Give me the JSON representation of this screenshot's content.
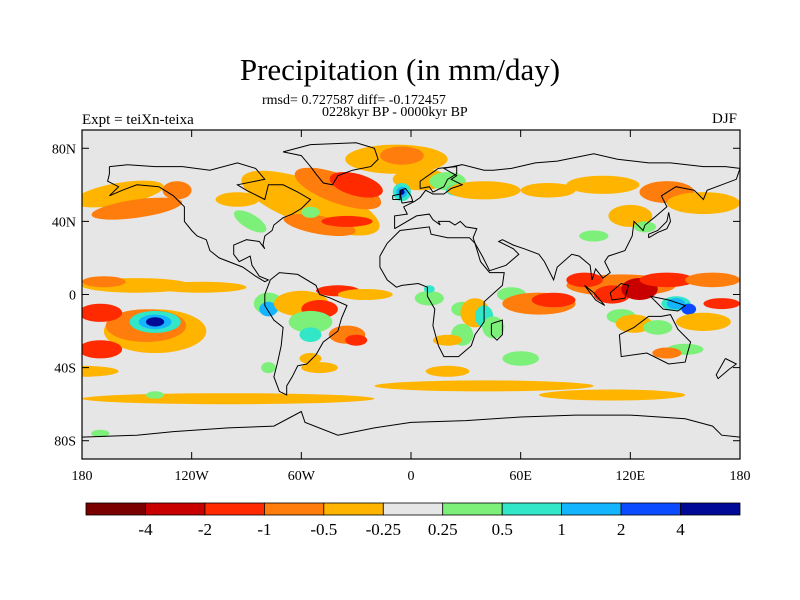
{
  "title": "Precipitation (in mm/day)",
  "stats_line": "rmsd= 0.727587 diff= -0.172457",
  "period_line": "0228kyr BP - 0000kyr BP",
  "left_label": "Expt = teiXn-teixa",
  "right_label": "DJF",
  "lat_ticks": [
    "80N",
    "40N",
    "0",
    "40S",
    "80S"
  ],
  "lon_ticks": [
    "180",
    "120W",
    "60W",
    "0",
    "60E",
    "120E",
    "180"
  ],
  "colorbar": {
    "labels": [
      "-4",
      "-2",
      "-1",
      "-0.5",
      "-0.25",
      "0.25",
      "0.5",
      "1",
      "2",
      "4"
    ],
    "colors": [
      "#7a0000",
      "#c80000",
      "#ff2a00",
      "#ff7d0d",
      "#ffb400",
      "#e6e6e6",
      "#7df07a",
      "#32e6c8",
      "#14b4ff",
      "#0a4bff",
      "#000a96"
    ]
  },
  "colors": {
    "ocean_neutral": "#e6e6e6",
    "strong_dry": "#c80000",
    "dry": "#ff2a00",
    "moderate_dry": "#ff7d0d",
    "weak_dry": "#ffb400",
    "weak_wet": "#7df07a",
    "wet": "#32e6c8",
    "more_wet": "#14b4ff",
    "very_wet": "#0a4bff",
    "extreme_wet": "#000a96"
  }
}
